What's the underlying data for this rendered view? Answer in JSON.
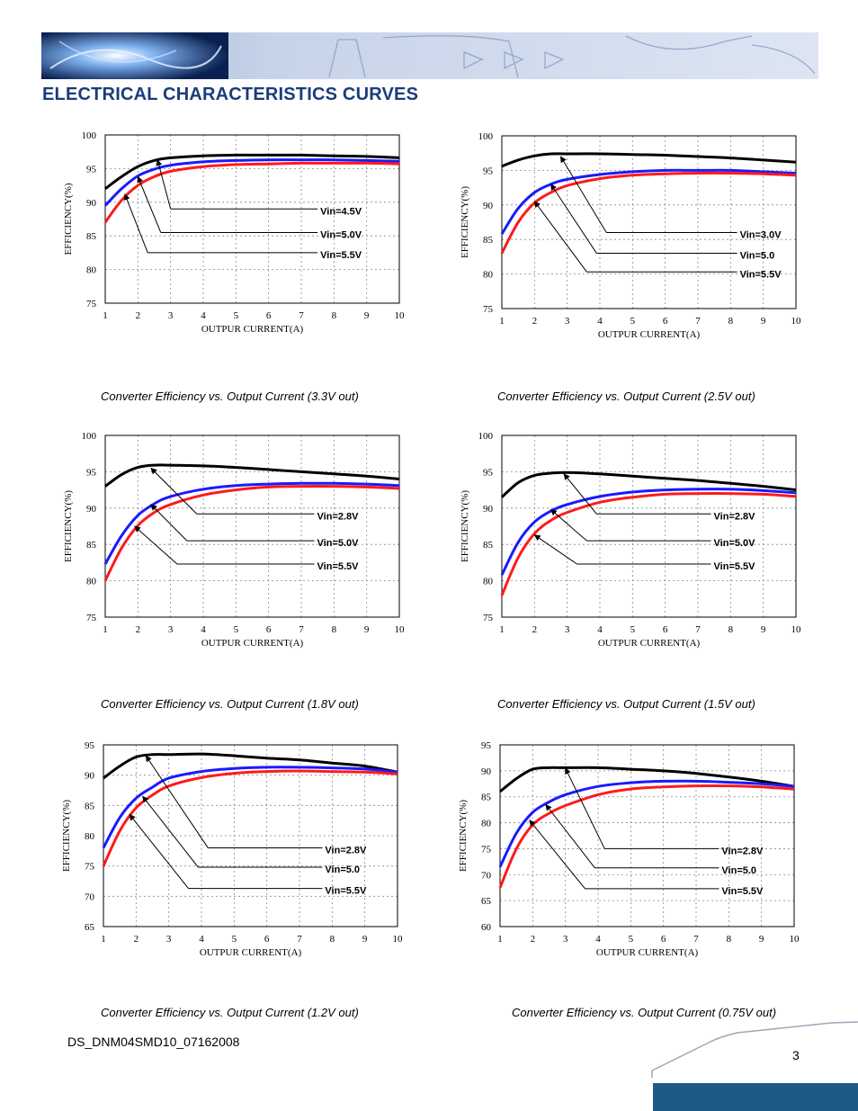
{
  "header": {
    "section_title": "ELECTRICAL CHARACTERISTICS CURVES"
  },
  "footer": {
    "doc_id": "DS_DNM04SMD10_07162008",
    "page_number": "3"
  },
  "colors": {
    "black_curve": "#000000",
    "blue_curve": "#1a1aff",
    "red_curve": "#ff1a1a",
    "title_blue": "#1a3d7a",
    "footer_blue": "#1f5a86"
  },
  "chart_data": [
    {
      "type": "line",
      "caption": "Converter Efficiency vs. Output Current (3.3V out)",
      "xlabel": "OUTPUR CURRENT(A)",
      "ylabel": "EFFICIENCY(%)",
      "xlim": [
        1,
        10
      ],
      "ylim": [
        75,
        100
      ],
      "xticks": [
        "1",
        "2",
        "3",
        "4",
        "5",
        "6",
        "7",
        "8",
        "9",
        "10"
      ],
      "yticks": [
        "75",
        "80",
        "85",
        "90",
        "95",
        "100"
      ],
      "grid": true,
      "series": [
        {
          "name": "Vin=4.5V",
          "color": "black",
          "x": [
            1,
            1.5,
            2,
            2.5,
            3,
            4,
            5,
            6,
            7,
            8,
            9,
            10
          ],
          "y": [
            92.0,
            93.8,
            95.3,
            96.2,
            96.6,
            96.9,
            97.0,
            97.0,
            97.0,
            96.9,
            96.8,
            96.6
          ]
        },
        {
          "name": "Vin=5.0V",
          "color": "blue",
          "x": [
            1,
            1.5,
            2,
            2.5,
            3,
            4,
            5,
            6,
            7,
            8,
            9,
            10
          ],
          "y": [
            89.5,
            92.0,
            93.9,
            94.9,
            95.5,
            96.0,
            96.2,
            96.3,
            96.3,
            96.3,
            96.2,
            96.1
          ]
        },
        {
          "name": "Vin=5.5V",
          "color": "red",
          "x": [
            1,
            1.5,
            2,
            2.5,
            3,
            4,
            5,
            6,
            7,
            8,
            9,
            10
          ],
          "y": [
            87.0,
            90.3,
            92.5,
            93.8,
            94.6,
            95.3,
            95.6,
            95.7,
            95.8,
            95.8,
            95.8,
            95.7
          ]
        }
      ],
      "annotations": [
        {
          "text": "Vin=4.5V",
          "arrow_from": [
            3.0,
            89.0
          ],
          "arrow_to": [
            2.6,
            96.3
          ],
          "line_to_x": 7.5
        },
        {
          "text": "Vin=5.0V",
          "arrow_from": [
            2.7,
            85.5
          ],
          "arrow_to": [
            2.0,
            93.8
          ],
          "line_to_x": 7.5
        },
        {
          "text": "Vin=5.5V",
          "arrow_from": [
            2.3,
            82.5
          ],
          "arrow_to": [
            1.6,
            91.2
          ],
          "line_to_x": 7.5
        }
      ]
    },
    {
      "type": "line",
      "caption": "Converter Efficiency vs. Output Current (2.5V out)",
      "xlabel": "OUTPUR CURRENT(A)",
      "ylabel": "EFFICIENCY(%)",
      "xlim": [
        1,
        10
      ],
      "ylim": [
        75,
        100
      ],
      "xticks": [
        "1",
        "2",
        "3",
        "4",
        "5",
        "6",
        "7",
        "8",
        "9",
        "10"
      ],
      "yticks": [
        "75",
        "80",
        "85",
        "90",
        "95",
        "100"
      ],
      "grid": true,
      "series": [
        {
          "name": "Vin=3.0V",
          "color": "black",
          "x": [
            1,
            1.5,
            2,
            2.5,
            3,
            4,
            5,
            6,
            7,
            8,
            9,
            10
          ],
          "y": [
            95.6,
            96.5,
            97.1,
            97.4,
            97.4,
            97.4,
            97.3,
            97.2,
            97.0,
            96.8,
            96.5,
            96.2
          ]
        },
        {
          "name": "Vin=5.0",
          "color": "blue",
          "x": [
            1,
            1.5,
            2,
            2.5,
            3,
            4,
            5,
            6,
            7,
            8,
            9,
            10
          ],
          "y": [
            85.8,
            89.5,
            91.8,
            93.0,
            93.7,
            94.4,
            94.8,
            95.0,
            95.0,
            95.0,
            94.8,
            94.6
          ]
        },
        {
          "name": "Vin=5.5V",
          "color": "red",
          "x": [
            1,
            1.5,
            2,
            2.5,
            3,
            4,
            5,
            6,
            7,
            8,
            9,
            10
          ],
          "y": [
            83.0,
            87.5,
            90.3,
            91.8,
            92.8,
            93.8,
            94.3,
            94.5,
            94.6,
            94.6,
            94.5,
            94.3
          ]
        }
      ],
      "annotations": [
        {
          "text": "Vin=3.0V",
          "arrow_from": [
            4.2,
            86.0
          ],
          "arrow_to": [
            2.8,
            97.0
          ],
          "line_to_x": 8.2
        },
        {
          "text": "Vin=5.0",
          "arrow_from": [
            3.9,
            83.0
          ],
          "arrow_to": [
            2.5,
            93.0
          ],
          "line_to_x": 8.2
        },
        {
          "text": "Vin=5.5V",
          "arrow_from": [
            3.6,
            80.3
          ],
          "arrow_to": [
            2.0,
            90.5
          ],
          "line_to_x": 8.2
        }
      ]
    },
    {
      "type": "line",
      "caption": "Converter Efficiency vs. Output Current (1.8V out)",
      "xlabel": "OUTPUR CURRENT(A)",
      "ylabel": "EFFICIENCY(%)",
      "xlim": [
        1,
        10
      ],
      "ylim": [
        75,
        100
      ],
      "xticks": [
        "1",
        "2",
        "3",
        "4",
        "5",
        "6",
        "7",
        "8",
        "9",
        "10"
      ],
      "yticks": [
        "75",
        "80",
        "85",
        "90",
        "95",
        "100"
      ],
      "grid": true,
      "series": [
        {
          "name": "Vin=2.8V",
          "color": "black",
          "x": [
            1,
            1.5,
            2,
            2.5,
            3,
            4,
            5,
            6,
            7,
            8,
            9,
            10
          ],
          "y": [
            93.0,
            94.6,
            95.6,
            95.9,
            95.9,
            95.8,
            95.6,
            95.3,
            95.0,
            94.7,
            94.4,
            94.0
          ]
        },
        {
          "name": "Vin=5.0V",
          "color": "blue",
          "x": [
            1,
            1.5,
            2,
            2.5,
            3,
            4,
            5,
            6,
            7,
            8,
            9,
            10
          ],
          "y": [
            82.3,
            86.2,
            89.0,
            90.6,
            91.6,
            92.6,
            93.1,
            93.3,
            93.4,
            93.4,
            93.3,
            93.1
          ]
        },
        {
          "name": "Vin=5.5V",
          "color": "red",
          "x": [
            1,
            1.5,
            2,
            2.5,
            3,
            4,
            5,
            6,
            7,
            8,
            9,
            10
          ],
          "y": [
            80.0,
            84.5,
            87.6,
            89.4,
            90.5,
            91.8,
            92.5,
            92.9,
            93.0,
            93.0,
            92.9,
            92.7
          ]
        }
      ],
      "annotations": [
        {
          "text": "Vin=2.8V",
          "arrow_from": [
            3.8,
            89.2
          ],
          "arrow_to": [
            2.4,
            95.5
          ],
          "line_to_x": 7.4
        },
        {
          "text": "Vin=5.0V",
          "arrow_from": [
            3.5,
            85.5
          ],
          "arrow_to": [
            2.4,
            90.5
          ],
          "line_to_x": 7.4
        },
        {
          "text": "Vin=5.5V",
          "arrow_from": [
            3.2,
            82.3
          ],
          "arrow_to": [
            1.9,
            87.5
          ],
          "line_to_x": 7.4
        }
      ]
    },
    {
      "type": "line",
      "caption": "Converter Efficiency vs. Output Current (1.5V out)",
      "xlabel": "OUTPUR CURRENT(A)",
      "ylabel": "EFFICIENCY(%)",
      "xlim": [
        1,
        10
      ],
      "ylim": [
        75,
        100
      ],
      "xticks": [
        "1",
        "2",
        "3",
        "4",
        "5",
        "6",
        "7",
        "8",
        "9",
        "10"
      ],
      "yticks": [
        "75",
        "80",
        "85",
        "90",
        "95",
        "100"
      ],
      "grid": true,
      "series": [
        {
          "name": "Vin=2.8V",
          "color": "black",
          "x": [
            1,
            1.5,
            2,
            2.5,
            3,
            4,
            5,
            6,
            7,
            8,
            9,
            10
          ],
          "y": [
            91.5,
            93.5,
            94.5,
            94.8,
            94.9,
            94.7,
            94.4,
            94.1,
            93.8,
            93.4,
            93.0,
            92.5
          ]
        },
        {
          "name": "Vin=5.0V",
          "color": "blue",
          "x": [
            1,
            1.5,
            2,
            2.5,
            3,
            4,
            5,
            6,
            7,
            8,
            9,
            10
          ],
          "y": [
            80.8,
            85.3,
            88.1,
            89.6,
            90.5,
            91.6,
            92.2,
            92.5,
            92.6,
            92.6,
            92.4,
            92.1
          ]
        },
        {
          "name": "Vin=5.5V",
          "color": "red",
          "x": [
            1,
            1.5,
            2,
            2.5,
            3,
            4,
            5,
            6,
            7,
            8,
            9,
            10
          ],
          "y": [
            78.0,
            83.2,
            86.5,
            88.3,
            89.4,
            90.8,
            91.5,
            91.9,
            92.0,
            92.0,
            91.9,
            91.6
          ]
        }
      ],
      "annotations": [
        {
          "text": "Vin=2.8V",
          "arrow_from": [
            3.9,
            89.2
          ],
          "arrow_to": [
            2.9,
            94.7
          ],
          "line_to_x": 7.4
        },
        {
          "text": "Vin=5.0V",
          "arrow_from": [
            3.6,
            85.5
          ],
          "arrow_to": [
            2.5,
            89.8
          ],
          "line_to_x": 7.4
        },
        {
          "text": "Vin=5.5V",
          "arrow_from": [
            3.3,
            82.3
          ],
          "arrow_to": [
            2.0,
            86.3
          ],
          "line_to_x": 7.4
        }
      ]
    },
    {
      "type": "line",
      "caption": "Converter Efficiency vs. Output Current (1.2V out)",
      "xlabel": "OUTPUR CURRENT(A)",
      "ylabel": "EFFICIENCY(%)",
      "xlim": [
        1,
        10
      ],
      "ylim": [
        65,
        95
      ],
      "xticks": [
        "1",
        "2",
        "3",
        "4",
        "5",
        "6",
        "7",
        "8",
        "9",
        "10"
      ],
      "yticks": [
        "65",
        "70",
        "75",
        "80",
        "85",
        "90",
        "95"
      ],
      "grid": true,
      "series": [
        {
          "name": "Vin=2.8V",
          "color": "black",
          "x": [
            1,
            1.5,
            2,
            2.5,
            3,
            4,
            5,
            6,
            7,
            8,
            9,
            10
          ],
          "y": [
            89.5,
            91.5,
            93.0,
            93.4,
            93.4,
            93.5,
            93.2,
            92.8,
            92.5,
            92.0,
            91.5,
            90.5
          ]
        },
        {
          "name": "Vin=5.0",
          "color": "blue",
          "x": [
            1,
            1.5,
            2,
            2.5,
            3,
            4,
            5,
            6,
            7,
            8,
            9,
            10
          ],
          "y": [
            78.0,
            83.0,
            86.2,
            88.0,
            89.5,
            90.6,
            91.1,
            91.3,
            91.3,
            91.2,
            91.0,
            90.5
          ]
        },
        {
          "name": "Vin=5.5V",
          "color": "red",
          "x": [
            1,
            1.5,
            2,
            2.5,
            3,
            4,
            5,
            6,
            7,
            8,
            9,
            10
          ],
          "y": [
            75.0,
            80.8,
            84.6,
            86.7,
            88.2,
            89.6,
            90.3,
            90.6,
            90.7,
            90.6,
            90.5,
            90.2
          ]
        }
      ],
      "annotations": [
        {
          "text": "Vin=2.8V",
          "arrow_from": [
            4.2,
            78.0
          ],
          "arrow_to": [
            2.3,
            93.2
          ],
          "line_to_x": 7.7
        },
        {
          "text": "Vin=5.0",
          "arrow_from": [
            3.9,
            74.8
          ],
          "arrow_to": [
            2.2,
            86.5
          ],
          "line_to_x": 7.7
        },
        {
          "text": "Vin=5.5V",
          "arrow_from": [
            3.6,
            71.3
          ],
          "arrow_to": [
            1.8,
            83.5
          ],
          "line_to_x": 7.7
        }
      ]
    },
    {
      "type": "line",
      "caption": "Converter Efficiency vs. Output Current (0.75V out)",
      "xlabel": "OUTPUR CURRENT(A)",
      "ylabel": "EFFICIENCY(%)",
      "xlim": [
        1,
        10
      ],
      "ylim": [
        60,
        95
      ],
      "xticks": [
        "1",
        "2",
        "3",
        "4",
        "5",
        "6",
        "7",
        "8",
        "9",
        "10"
      ],
      "yticks": [
        "60",
        "65",
        "70",
        "75",
        "80",
        "85",
        "90",
        "95"
      ],
      "grid": true,
      "series": [
        {
          "name": "Vin=2.8V",
          "color": "black",
          "x": [
            1,
            1.5,
            2,
            2.5,
            3,
            4,
            5,
            6,
            7,
            8,
            9,
            10
          ],
          "y": [
            86.0,
            88.5,
            90.3,
            90.6,
            90.6,
            90.6,
            90.3,
            90.0,
            89.5,
            88.8,
            88.0,
            87.0
          ]
        },
        {
          "name": "Vin=5.0",
          "color": "blue",
          "x": [
            1,
            1.5,
            2,
            2.5,
            3,
            4,
            5,
            6,
            7,
            8,
            9,
            10
          ],
          "y": [
            71.5,
            78.0,
            82.0,
            84.0,
            85.4,
            87.0,
            87.7,
            88.0,
            88.0,
            87.8,
            87.5,
            87.0
          ]
        },
        {
          "name": "Vin=5.5V",
          "color": "red",
          "x": [
            1,
            1.5,
            2,
            2.5,
            3,
            4,
            5,
            6,
            7,
            8,
            9,
            10
          ],
          "y": [
            67.5,
            75.0,
            79.6,
            81.8,
            83.3,
            85.4,
            86.5,
            86.9,
            87.1,
            87.1,
            86.9,
            86.5
          ]
        }
      ],
      "annotations": [
        {
          "text": "Vin=2.8V",
          "arrow_from": [
            4.2,
            75.0
          ],
          "arrow_to": [
            3.0,
            90.5
          ],
          "line_to_x": 7.7
        },
        {
          "text": "Vin=5.0",
          "arrow_from": [
            3.9,
            71.3
          ],
          "arrow_to": [
            2.4,
            83.5
          ],
          "line_to_x": 7.7
        },
        {
          "text": "Vin=5.5V",
          "arrow_from": [
            3.6,
            67.3
          ],
          "arrow_to": [
            1.9,
            80.5
          ],
          "line_to_x": 7.7
        }
      ]
    }
  ]
}
